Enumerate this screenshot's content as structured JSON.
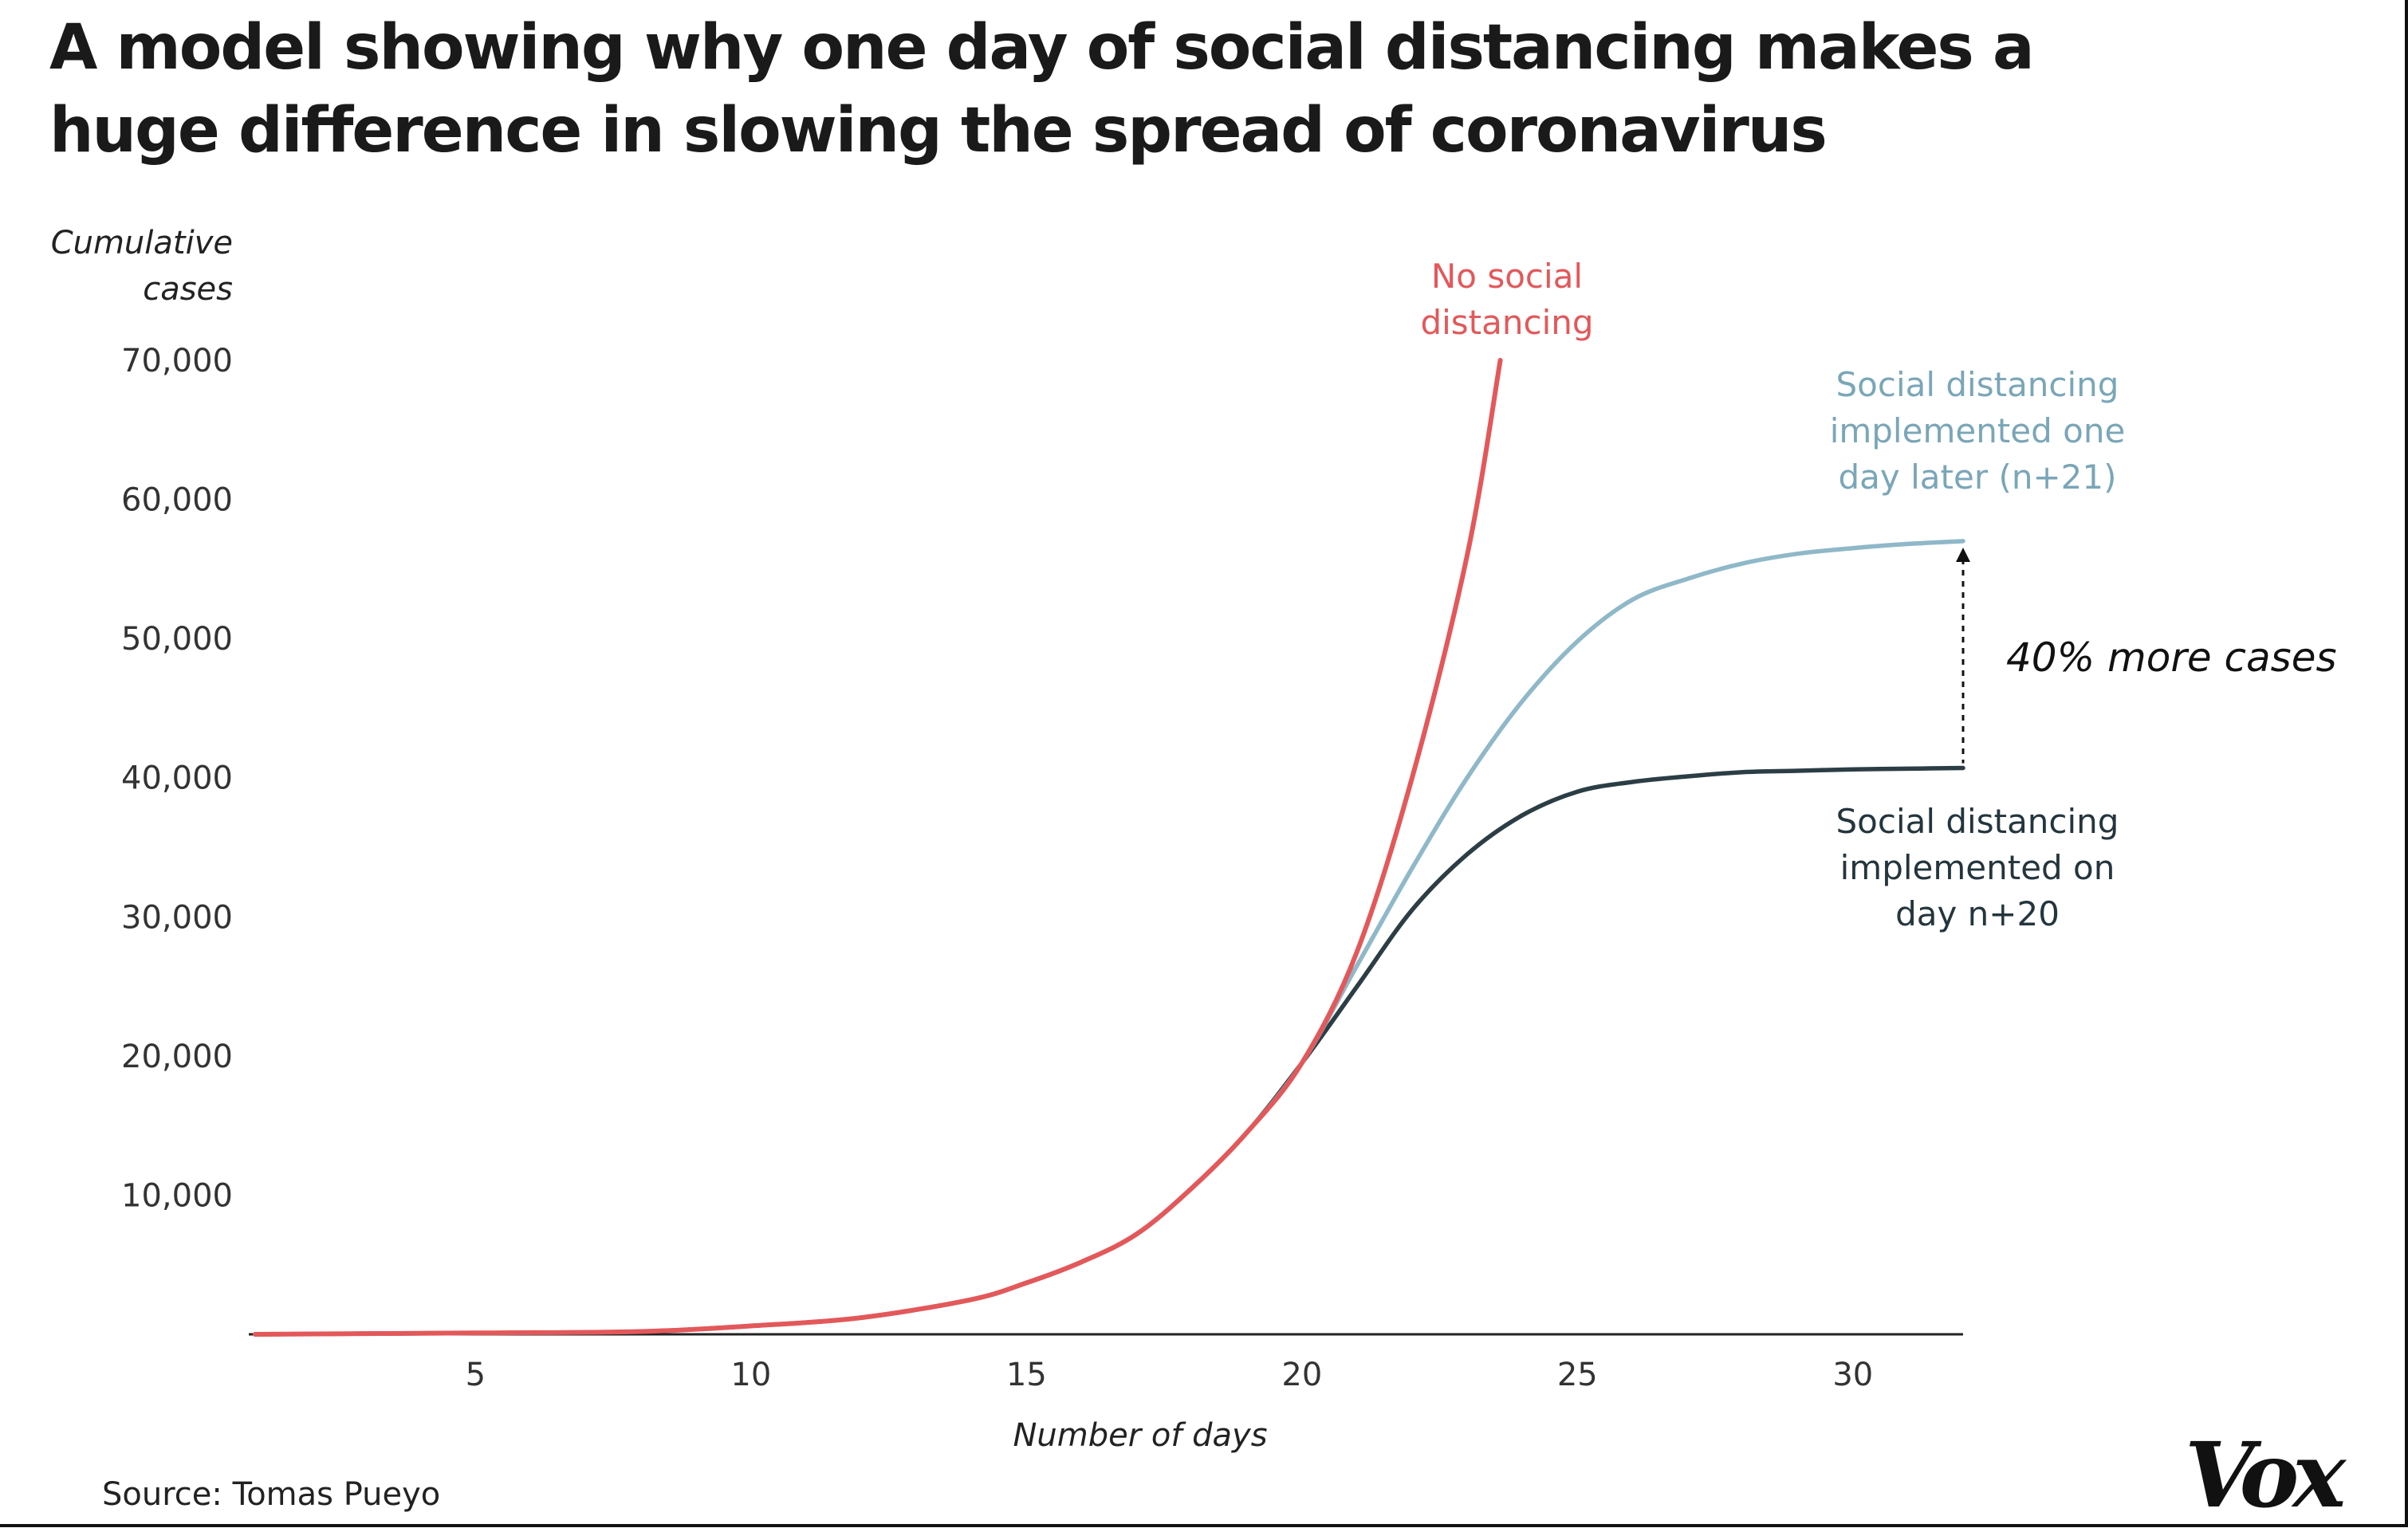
{
  "title_lines": [
    "A model showing why one day of social distancing makes a",
    "huge difference in slowing the spread of coronavirus"
  ],
  "source": "Source: Tomas Pueyo",
  "logo_text": "Vox",
  "annotation": "40% more cases",
  "colors": {
    "no_distancing": "#e3585a",
    "one_day_later": "#8fb8c8",
    "on_day_20": "#2c3e45",
    "axis": "#222222"
  },
  "chart_data": {
    "type": "line",
    "title": "A model showing why one day of social distancing makes a huge difference in slowing the spread of coronavirus",
    "xlabel": "Number of days",
    "ylabel_lines": [
      "Cumulative",
      "cases"
    ],
    "xlim": [
      1,
      32
    ],
    "ylim": [
      0,
      70000
    ],
    "x_ticks": [
      5,
      10,
      15,
      20,
      25,
      30
    ],
    "y_ticks": [
      10000,
      20000,
      30000,
      40000,
      50000,
      60000,
      70000
    ],
    "y_tick_labels": [
      "10,000",
      "20,000",
      "30,000",
      "40,000",
      "50,000",
      "60,000",
      "70,000"
    ],
    "grid": false,
    "series": [
      {
        "name": "No social distancing",
        "label_lines": [
          "No social",
          "distancing"
        ],
        "x": [
          1,
          5,
          8,
          10,
          12,
          14,
          15,
          16,
          17,
          18,
          19,
          20,
          21,
          22,
          23,
          23.6
        ],
        "y": [
          0,
          100,
          200,
          600,
          1200,
          2500,
          3700,
          5200,
          7200,
          10500,
          14500,
          19500,
          27500,
          40000,
          56000,
          70000
        ]
      },
      {
        "name": "Social distancing implemented one day later (n+21)",
        "label_lines": [
          "Social distancing",
          "implemented one",
          "day later (n+21)"
        ],
        "x": [
          1,
          5,
          8,
          10,
          12,
          14,
          15,
          16,
          17,
          18,
          19,
          20,
          21,
          22,
          23,
          24,
          25,
          26,
          27,
          28,
          29,
          30,
          31,
          32
        ],
        "y": [
          0,
          100,
          200,
          600,
          1200,
          2500,
          3700,
          5200,
          7200,
          10500,
          14500,
          19500,
          26500,
          33500,
          40000,
          45500,
          49800,
          52800,
          54300,
          55400,
          56100,
          56500,
          56800,
          57000
        ]
      },
      {
        "name": "Social distancing implemented on day n+20",
        "label_lines": [
          "Social distancing",
          "implemented on",
          "day n+20"
        ],
        "x": [
          1,
          5,
          8,
          10,
          12,
          14,
          15,
          16,
          17,
          18,
          19,
          20,
          21,
          22,
          23,
          24,
          25,
          26,
          27,
          28,
          29,
          30,
          31,
          32
        ],
        "y": [
          0,
          100,
          200,
          600,
          1200,
          2500,
          3700,
          5200,
          7200,
          10500,
          14500,
          19500,
          25000,
          30500,
          34500,
          37300,
          39000,
          39700,
          40100,
          40400,
          40500,
          40600,
          40650,
          40700
        ]
      }
    ],
    "annotations": [
      {
        "text": "40% more cases",
        "x": 32,
        "from_y": 40700,
        "to_y": 57000
      }
    ]
  }
}
